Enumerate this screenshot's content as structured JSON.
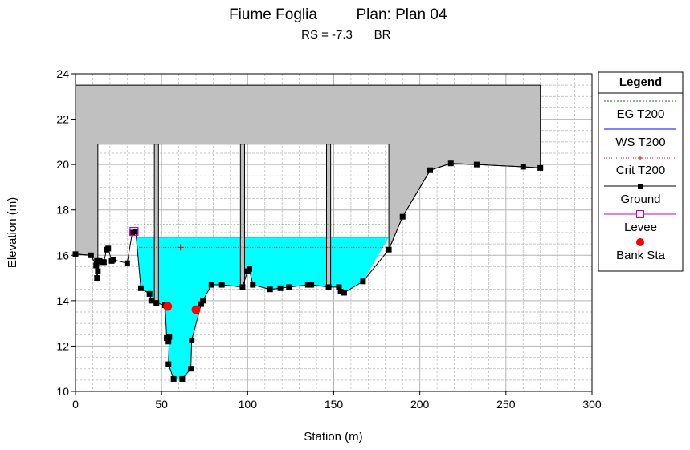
{
  "chart_data": {
    "type": "line",
    "title_river": "Fiume Foglia",
    "title_plan": "Plan: Plan 04",
    "subtitle_rs": "RS = -7.3",
    "subtitle_type": "BR",
    "xlabel": "Station (m)",
    "ylabel": "Elevation (m)",
    "xlim": [
      0,
      300
    ],
    "ylim": [
      10,
      24
    ],
    "xticks": [
      0,
      50,
      100,
      150,
      200,
      250,
      300
    ],
    "yticks": [
      10,
      12,
      14,
      16,
      18,
      20,
      22,
      24
    ],
    "grid": true,
    "legend": {
      "title": "Legend",
      "placement": "right",
      "entries": [
        "EG T200",
        "WS T200",
        "Crit T200",
        "Ground",
        "Levee",
        "Bank Sta"
      ]
    },
    "colors": {
      "water": "#00ffff",
      "deck": "#c0c0c0",
      "eg": "#008000",
      "ws": "#0000ff",
      "crit": "#ff0000",
      "ground": "#000000",
      "levee": "#cc00cc",
      "bank": "#ff0000",
      "grid": "#b4b4b4"
    },
    "water_surface_elevation": 16.8,
    "energy_grade_elevation": 17.35,
    "critical_depth": {
      "station": 61,
      "elevation": 16.35
    },
    "bridge": {
      "top_of_deck": 23.5,
      "low_chord": 20.9,
      "upstream_station": 0,
      "downstream_station": 270,
      "opening_start": 13,
      "opening_end": 182,
      "piers": [
        {
          "center": 47,
          "width": 2.4,
          "bottom": 13.9
        },
        {
          "center": 97,
          "width": 2.4,
          "bottom": 14.6
        },
        {
          "center": 147,
          "width": 2.4,
          "bottom": 14.6
        }
      ]
    },
    "ground": {
      "x": [
        0,
        9,
        12,
        12.5,
        12.5,
        13,
        14,
        16,
        16.5,
        18,
        19,
        21,
        22,
        30,
        33,
        35,
        38,
        43,
        44,
        47,
        52,
        53,
        54,
        54.5,
        54,
        57,
        62,
        67,
        67.5,
        73,
        74,
        79,
        85,
        97,
        100,
        101,
        103,
        113,
        119,
        124,
        135,
        137,
        147,
        153,
        154,
        156,
        167,
        182,
        190,
        206,
        218,
        233,
        260,
        270
      ],
      "y": [
        16.05,
        16.0,
        15.55,
        15.75,
        15.0,
        15.3,
        15.75,
        15.7,
        15.7,
        16.25,
        16.3,
        15.75,
        15.8,
        15.65,
        17.0,
        17.05,
        14.55,
        14.3,
        14.0,
        13.9,
        13.8,
        12.35,
        12.2,
        12.4,
        11.2,
        10.55,
        10.55,
        11.0,
        12.25,
        13.85,
        14.0,
        14.7,
        14.7,
        14.6,
        15.3,
        15.4,
        14.7,
        14.5,
        14.55,
        14.6,
        14.7,
        14.7,
        14.6,
        14.6,
        14.4,
        14.35,
        14.85,
        16.25,
        17.7,
        19.75,
        20.05,
        20.0,
        19.9,
        19.85
      ]
    },
    "levee": {
      "station": 34,
      "elevation": 17.05
    },
    "bank_stations": [
      {
        "station": 53.5,
        "elevation": 13.75
      },
      {
        "station": 70,
        "elevation": 13.6
      }
    ]
  }
}
